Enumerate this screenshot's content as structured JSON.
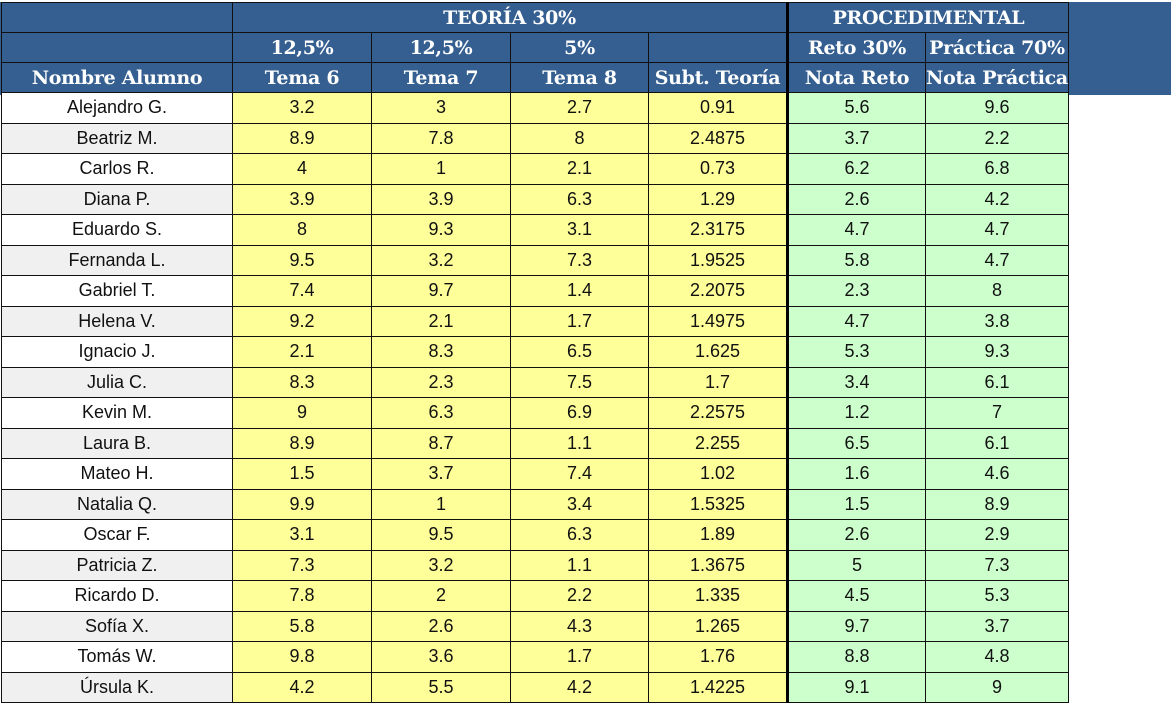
{
  "header": {
    "groups": {
      "teoria": "TEORÍA 30%",
      "procedimental": "PROCEDIMENTAL"
    },
    "weights": [
      "12,5%",
      "12,5%",
      "5%",
      "",
      "Reto 30%",
      "Práctica 70%"
    ],
    "columns": [
      "Nombre Alumno",
      "Tema 6",
      "Tema 7",
      "Tema 8",
      "Subt. Teoría",
      "Nota Reto",
      "Nota Práctica"
    ]
  },
  "colors": {
    "header_bg": "#355F91",
    "theory_cells": "#FFFF99",
    "procedural_cells": "#CCFFCC",
    "name_alt_row": "#F0F0F0"
  },
  "rows": [
    {
      "name": "Alejandro G.",
      "tema6": "3.2",
      "tema7": "3",
      "tema8": "2.7",
      "subt": "0.91",
      "reto": "5.6",
      "practica": "9.6"
    },
    {
      "name": "Beatriz M.",
      "tema6": "8.9",
      "tema7": "7.8",
      "tema8": "8",
      "subt": "2.4875",
      "reto": "3.7",
      "practica": "2.2"
    },
    {
      "name": "Carlos R.",
      "tema6": "4",
      "tema7": "1",
      "tema8": "2.1",
      "subt": "0.73",
      "reto": "6.2",
      "practica": "6.8"
    },
    {
      "name": "Diana P.",
      "tema6": "3.9",
      "tema7": "3.9",
      "tema8": "6.3",
      "subt": "1.29",
      "reto": "2.6",
      "practica": "4.2"
    },
    {
      "name": "Eduardo S.",
      "tema6": "8",
      "tema7": "9.3",
      "tema8": "3.1",
      "subt": "2.3175",
      "reto": "4.7",
      "practica": "4.7"
    },
    {
      "name": "Fernanda L.",
      "tema6": "9.5",
      "tema7": "3.2",
      "tema8": "7.3",
      "subt": "1.9525",
      "reto": "5.8",
      "practica": "4.7"
    },
    {
      "name": "Gabriel T.",
      "tema6": "7.4",
      "tema7": "9.7",
      "tema8": "1.4",
      "subt": "2.2075",
      "reto": "2.3",
      "practica": "8"
    },
    {
      "name": "Helena V.",
      "tema6": "9.2",
      "tema7": "2.1",
      "tema8": "1.7",
      "subt": "1.4975",
      "reto": "4.7",
      "practica": "3.8"
    },
    {
      "name": "Ignacio J.",
      "tema6": "2.1",
      "tema7": "8.3",
      "tema8": "6.5",
      "subt": "1.625",
      "reto": "5.3",
      "practica": "9.3"
    },
    {
      "name": "Julia C.",
      "tema6": "8.3",
      "tema7": "2.3",
      "tema8": "7.5",
      "subt": "1.7",
      "reto": "3.4",
      "practica": "6.1"
    },
    {
      "name": "Kevin M.",
      "tema6": "9",
      "tema7": "6.3",
      "tema8": "6.9",
      "subt": "2.2575",
      "reto": "1.2",
      "practica": "7"
    },
    {
      "name": "Laura B.",
      "tema6": "8.9",
      "tema7": "8.7",
      "tema8": "1.1",
      "subt": "2.255",
      "reto": "6.5",
      "practica": "6.1"
    },
    {
      "name": "Mateo H.",
      "tema6": "1.5",
      "tema7": "3.7",
      "tema8": "7.4",
      "subt": "1.02",
      "reto": "1.6",
      "practica": "4.6"
    },
    {
      "name": "Natalia Q.",
      "tema6": "9.9",
      "tema7": "1",
      "tema8": "3.4",
      "subt": "1.5325",
      "reto": "1.5",
      "practica": "8.9"
    },
    {
      "name": "Oscar F.",
      "tema6": "3.1",
      "tema7": "9.5",
      "tema8": "6.3",
      "subt": "1.89",
      "reto": "2.6",
      "practica": "2.9"
    },
    {
      "name": "Patricia Z.",
      "tema6": "7.3",
      "tema7": "3.2",
      "tema8": "1.1",
      "subt": "1.3675",
      "reto": "5",
      "practica": "7.3"
    },
    {
      "name": "Ricardo D.",
      "tema6": "7.8",
      "tema7": "2",
      "tema8": "2.2",
      "subt": "1.335",
      "reto": "4.5",
      "practica": "5.3"
    },
    {
      "name": "Sofía X.",
      "tema6": "5.8",
      "tema7": "2.6",
      "tema8": "4.3",
      "subt": "1.265",
      "reto": "9.7",
      "practica": "3.7"
    },
    {
      "name": "Tomás W.",
      "tema6": "9.8",
      "tema7": "3.6",
      "tema8": "1.7",
      "subt": "1.76",
      "reto": "8.8",
      "practica": "4.8"
    },
    {
      "name": "Úrsula K.",
      "tema6": "4.2",
      "tema7": "5.5",
      "tema8": "4.2",
      "subt": "1.4225",
      "reto": "9.1",
      "practica": "9"
    }
  ]
}
